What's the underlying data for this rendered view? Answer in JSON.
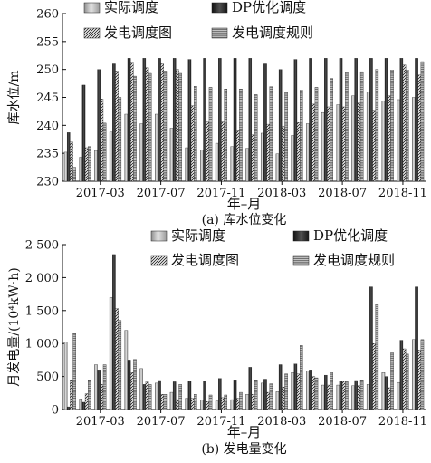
{
  "chart_data": [
    {
      "type": "bar",
      "caption": "(a) 库水位变化",
      "xlabel": "年–月",
      "ylabel": "库水位/m",
      "ylim": [
        230,
        260
      ],
      "yticks": [
        230,
        235,
        240,
        245,
        250,
        255,
        260
      ],
      "xtick_labels": [
        {
          "index": 2,
          "label": "2017-03"
        },
        {
          "index": 6,
          "label": "2017-07"
        },
        {
          "index": 10,
          "label": "2017-11"
        },
        {
          "index": 14,
          "label": "2018-03"
        },
        {
          "index": 18,
          "label": "2018-07"
        },
        {
          "index": 22,
          "label": "2018-11"
        }
      ],
      "categories": [
        "2017-01",
        "2017-02",
        "2017-03",
        "2017-04",
        "2017-05",
        "2017-06",
        "2017-07",
        "2017-08",
        "2017-09",
        "2017-10",
        "2017-11",
        "2017-12",
        "2018-01",
        "2018-02",
        "2018-03",
        "2018-04",
        "2018-05",
        "2018-06",
        "2018-07",
        "2018-08",
        "2018-09",
        "2018-10",
        "2018-11",
        "2018-12"
      ],
      "legend_placement": "top",
      "series": [
        {
          "name": "实际调度",
          "pattern": "light",
          "values": [
            235.2,
            234.3,
            235.5,
            238.8,
            242.0,
            240.3,
            242.0,
            239.5,
            236.0,
            235.6,
            236.8,
            236.2,
            235.9,
            238.6,
            234.9,
            238.2,
            240.3,
            242.3,
            243.7,
            245.3,
            246.0,
            244.3,
            244.6,
            245.0
          ]
        },
        {
          "name": "DP优化调度",
          "pattern": "dark",
          "values": [
            238.7,
            247.2,
            250.0,
            251.0,
            252.0,
            252.0,
            252.0,
            252.0,
            251.8,
            252.0,
            252.0,
            252.0,
            252.0,
            251.0,
            250.0,
            251.8,
            252.0,
            252.0,
            252.0,
            252.0,
            252.0,
            252.0,
            252.0,
            252.0
          ]
        },
        {
          "name": "发电调度图",
          "pattern": "diag",
          "values": [
            237.0,
            236.0,
            244.7,
            249.7,
            251.3,
            250.3,
            251.0,
            250.0,
            243.5,
            240.6,
            240.6,
            239.0,
            238.3,
            240.2,
            239.8,
            240.5,
            243.8,
            243.3,
            243.3,
            244.0,
            242.7,
            245.3,
            250.8,
            249.0
          ]
        },
        {
          "name": "发电调度规则",
          "pattern": "horiz",
          "values": [
            232.5,
            236.2,
            240.4,
            245.0,
            248.8,
            249.3,
            249.7,
            249.3,
            247.0,
            246.8,
            246.5,
            246.5,
            245.5,
            246.9,
            246.0,
            246.3,
            246.8,
            248.4,
            249.5,
            249.6,
            250.0,
            249.9,
            249.9,
            251.4
          ]
        }
      ]
    },
    {
      "type": "bar",
      "caption": "(b) 发电量变化",
      "xlabel": "年–月",
      "ylabel": "月发电量/(10⁴kW·h)",
      "ylim": [
        0,
        2500
      ],
      "yticks": [
        0,
        500,
        1000,
        1500,
        2000,
        2500
      ],
      "ytick_labels": [
        "0",
        "500",
        "1 000",
        "1 500",
        "2 000",
        "2 500"
      ],
      "xtick_labels": [
        {
          "index": 2,
          "label": "2017-03"
        },
        {
          "index": 6,
          "label": "2017-07"
        },
        {
          "index": 10,
          "label": "2017-11"
        },
        {
          "index": 14,
          "label": "2018-03"
        },
        {
          "index": 18,
          "label": "2018-07"
        },
        {
          "index": 22,
          "label": "2018-11"
        }
      ],
      "categories": [
        "2017-01",
        "2017-02",
        "2017-03",
        "2017-04",
        "2017-05",
        "2017-06",
        "2017-07",
        "2017-08",
        "2017-09",
        "2017-10",
        "2017-11",
        "2017-12",
        "2018-01",
        "2018-02",
        "2018-03",
        "2018-04",
        "2018-05",
        "2018-06",
        "2018-07",
        "2018-08",
        "2018-09",
        "2018-10",
        "2018-11",
        "2018-12"
      ],
      "legend_placement": "top",
      "series": [
        {
          "name": "实际调度",
          "pattern": "light",
          "values": [
            1020,
            160,
            680,
            1700,
            1200,
            620,
            400,
            260,
            170,
            140,
            130,
            150,
            230,
            400,
            270,
            560,
            580,
            370,
            370,
            360,
            380,
            560,
            410,
            1060
          ]
        },
        {
          "name": "DP优化调度",
          "pattern": "dark",
          "values": [
            40,
            110,
            600,
            2350,
            750,
            380,
            440,
            420,
            430,
            430,
            470,
            450,
            640,
            460,
            680,
            690,
            600,
            520,
            430,
            440,
            1860,
            500,
            1050,
            1860
          ]
        },
        {
          "name": "发电调度图",
          "pattern": "diag",
          "values": [
            450,
            240,
            380,
            1530,
            560,
            420,
            230,
            150,
            170,
            120,
            180,
            170,
            230,
            260,
            340,
            540,
            500,
            370,
            430,
            360,
            1000,
            330,
            920,
            900
          ]
        },
        {
          "name": "发电调度规则",
          "pattern": "horiz",
          "values": [
            1150,
            450,
            680,
            1350,
            760,
            380,
            230,
            380,
            230,
            220,
            220,
            260,
            450,
            390,
            540,
            970,
            480,
            560,
            420,
            450,
            1590,
            860,
            840,
            1060
          ]
        }
      ]
    }
  ]
}
